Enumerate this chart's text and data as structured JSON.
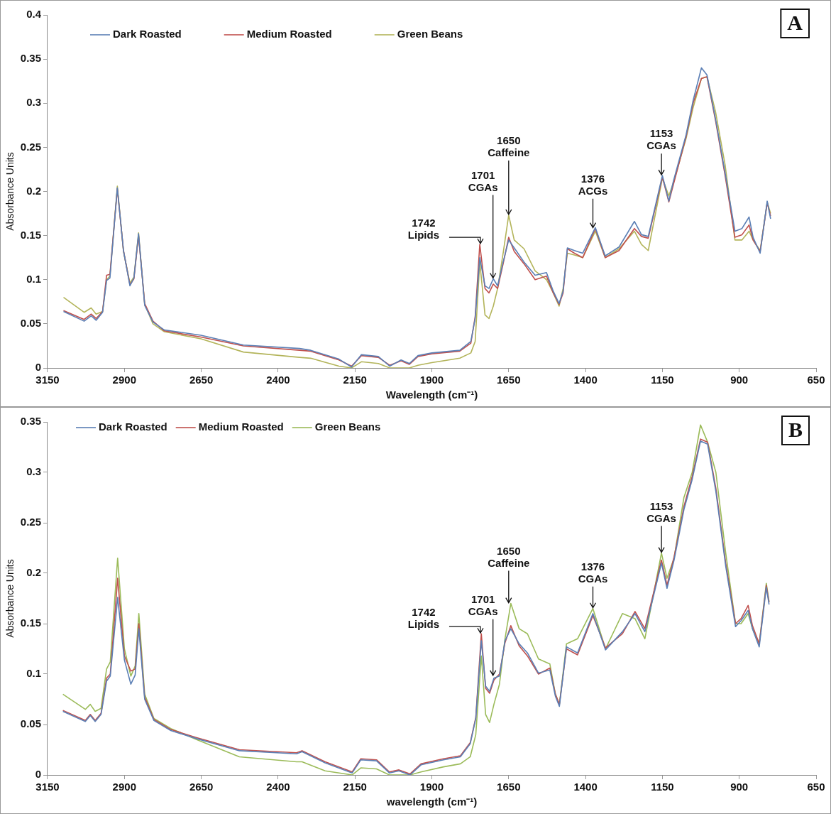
{
  "chart_data": [
    {
      "type": "line",
      "title": "A",
      "xlabel": "Wavelength (cm⁻¹)",
      "ylabel": "Absorbance Units",
      "xlim": [
        3150,
        650
      ],
      "xticks": [
        3150,
        2900,
        2650,
        2400,
        2150,
        1900,
        1650,
        1400,
        1150,
        900,
        650
      ],
      "ylim": [
        0,
        0.4
      ],
      "yticks": [
        0,
        0.05,
        0.1,
        0.15,
        0.2,
        0.25,
        0.3,
        0.35,
        0.4
      ],
      "legend": "top left",
      "grid": false,
      "marker": "none",
      "line_style": "solid",
      "x": [
        3098,
        3031,
        3008,
        2992,
        2971,
        2958,
        2947,
        2923,
        2903,
        2882,
        2869,
        2854,
        2834,
        2807,
        2770,
        2651,
        2513,
        2330,
        2294,
        2202,
        2161,
        2129,
        2074,
        2037,
        2000,
        1973,
        1945,
        1900,
        1809,
        1773,
        1759,
        1744,
        1727,
        1714,
        1700,
        1686,
        1668,
        1650,
        1632,
        1600,
        1564,
        1527,
        1505,
        1486,
        1473,
        1459,
        1436,
        1409,
        1368,
        1336,
        1291,
        1241,
        1218,
        1196,
        1150,
        1129,
        1114,
        1073,
        1050,
        1023,
        1005,
        977,
        946,
        914,
        891,
        868,
        855,
        832,
        809,
        798
      ],
      "series": [
        {
          "name": "Dark Roasted",
          "color": "#5b7fb5",
          "values": [
            0.064,
            0.053,
            0.059,
            0.054,
            0.063,
            0.099,
            0.102,
            0.204,
            0.133,
            0.093,
            0.102,
            0.152,
            0.071,
            0.052,
            0.043,
            0.037,
            0.026,
            0.022,
            0.02,
            0.01,
            0.001,
            0.015,
            0.013,
            0.002,
            0.009,
            0.005,
            0.014,
            0.017,
            0.02,
            0.03,
            0.056,
            0.125,
            0.093,
            0.09,
            0.101,
            0.093,
            0.12,
            0.145,
            0.136,
            0.12,
            0.105,
            0.108,
            0.087,
            0.073,
            0.087,
            0.136,
            0.133,
            0.13,
            0.159,
            0.127,
            0.137,
            0.166,
            0.151,
            0.149,
            0.218,
            0.189,
            0.212,
            0.264,
            0.303,
            0.34,
            0.332,
            0.282,
            0.221,
            0.155,
            0.158,
            0.171,
            0.148,
            0.13,
            0.189,
            0.169
          ]
        },
        {
          "name": "Medium Roasted",
          "color": "#c0504d",
          "values": [
            0.065,
            0.055,
            0.061,
            0.056,
            0.064,
            0.105,
            0.106,
            0.203,
            0.133,
            0.094,
            0.101,
            0.15,
            0.073,
            0.053,
            0.042,
            0.035,
            0.025,
            0.02,
            0.019,
            0.009,
            0.002,
            0.014,
            0.012,
            0.003,
            0.008,
            0.004,
            0.013,
            0.016,
            0.019,
            0.028,
            0.058,
            0.14,
            0.09,
            0.085,
            0.095,
            0.09,
            0.118,
            0.148,
            0.132,
            0.118,
            0.1,
            0.104,
            0.085,
            0.072,
            0.085,
            0.135,
            0.13,
            0.125,
            0.158,
            0.125,
            0.133,
            0.158,
            0.149,
            0.147,
            0.216,
            0.188,
            0.208,
            0.262,
            0.3,
            0.328,
            0.33,
            0.28,
            0.218,
            0.148,
            0.151,
            0.162,
            0.145,
            0.132,
            0.187,
            0.172
          ]
        },
        {
          "name": "Green Beans",
          "color": "#b3b45a",
          "values": [
            0.08,
            0.063,
            0.068,
            0.061,
            0.064,
            0.1,
            0.104,
            0.206,
            0.132,
            0.096,
            0.103,
            0.153,
            0.072,
            0.05,
            0.041,
            0.033,
            0.018,
            0.012,
            0.011,
            0.002,
            0.0,
            0.007,
            0.005,
            0.0,
            0.0,
            0.0,
            0.003,
            0.006,
            0.011,
            0.017,
            0.03,
            0.12,
            0.06,
            0.056,
            0.07,
            0.09,
            0.13,
            0.173,
            0.145,
            0.135,
            0.11,
            0.1,
            0.085,
            0.07,
            0.09,
            0.13,
            0.128,
            0.125,
            0.155,
            0.125,
            0.135,
            0.155,
            0.14,
            0.133,
            0.215,
            0.195,
            0.21,
            0.26,
            0.295,
            0.328,
            0.33,
            0.29,
            0.23,
            0.145,
            0.145,
            0.155,
            0.145,
            0.133,
            0.188,
            0.175
          ]
        }
      ],
      "annotations": [
        {
          "text": "1742\nLipids",
          "x": 1742,
          "y": 0.14
        },
        {
          "text": "1701\nCGAs",
          "x": 1701,
          "y": 0.101
        },
        {
          "text": "1650\nCaffeine",
          "x": 1650,
          "y": 0.173
        },
        {
          "text": "1376\nACGs",
          "x": 1376,
          "y": 0.158
        },
        {
          "text": "1153\nCGAs",
          "x": 1153,
          "y": 0.218
        }
      ]
    },
    {
      "type": "line",
      "title": "B",
      "xlabel": "wavelength (cm⁻¹)",
      "ylabel": "Absorbance Units",
      "xlim": [
        3150,
        650
      ],
      "xticks": [
        3150,
        2900,
        2650,
        2400,
        2150,
        1900,
        1650,
        1400,
        1150,
        900,
        650
      ],
      "ylim": [
        0,
        0.35
      ],
      "yticks": [
        0,
        0.05,
        0.1,
        0.15,
        0.2,
        0.25,
        0.3,
        0.35
      ],
      "legend": "top left",
      "grid": false,
      "marker": "none",
      "line_style": "solid",
      "x": [
        3100,
        3027,
        3011,
        2995,
        2976,
        2958,
        2946,
        2922,
        2900,
        2879,
        2865,
        2853,
        2834,
        2804,
        2749,
        2665,
        2526,
        2340,
        2322,
        2247,
        2159,
        2131,
        2080,
        2038,
        2007,
        1971,
        1935,
        1862,
        1807,
        1775,
        1757,
        1739,
        1725,
        1712,
        1698,
        1680,
        1662,
        1643,
        1616,
        1589,
        1553,
        1516,
        1498,
        1485,
        1462,
        1426,
        1376,
        1335,
        1280,
        1239,
        1207,
        1153,
        1135,
        1112,
        1080,
        1053,
        1026,
        1003,
        976,
        944,
        912,
        894,
        871,
        857,
        835,
        812,
        803
      ],
      "series": [
        {
          "name": "Dark Roasted",
          "color": "#5b7fb5",
          "values": [
            0.063,
            0.053,
            0.059,
            0.053,
            0.06,
            0.093,
            0.098,
            0.176,
            0.114,
            0.09,
            0.099,
            0.145,
            0.075,
            0.054,
            0.044,
            0.036,
            0.024,
            0.021,
            0.023,
            0.012,
            0.002,
            0.015,
            0.014,
            0.002,
            0.004,
            0.0,
            0.01,
            0.015,
            0.018,
            0.031,
            0.056,
            0.133,
            0.088,
            0.083,
            0.096,
            0.098,
            0.133,
            0.145,
            0.13,
            0.121,
            0.101,
            0.104,
            0.078,
            0.068,
            0.127,
            0.121,
            0.16,
            0.124,
            0.142,
            0.16,
            0.142,
            0.21,
            0.185,
            0.213,
            0.263,
            0.293,
            0.331,
            0.328,
            0.281,
            0.207,
            0.147,
            0.153,
            0.163,
            0.145,
            0.127,
            0.186,
            0.169
          ]
        },
        {
          "name": "Medium Roasted",
          "color": "#c0504d",
          "values": [
            0.064,
            0.054,
            0.06,
            0.054,
            0.061,
            0.096,
            0.1,
            0.195,
            0.118,
            0.103,
            0.105,
            0.15,
            0.077,
            0.055,
            0.045,
            0.037,
            0.025,
            0.022,
            0.024,
            0.013,
            0.003,
            0.016,
            0.015,
            0.003,
            0.005,
            0.001,
            0.011,
            0.016,
            0.019,
            0.032,
            0.057,
            0.14,
            0.086,
            0.081,
            0.094,
            0.1,
            0.131,
            0.148,
            0.128,
            0.118,
            0.1,
            0.106,
            0.08,
            0.07,
            0.125,
            0.119,
            0.158,
            0.126,
            0.14,
            0.162,
            0.145,
            0.213,
            0.188,
            0.216,
            0.266,
            0.296,
            0.333,
            0.33,
            0.284,
            0.21,
            0.15,
            0.155,
            0.168,
            0.148,
            0.13,
            0.188,
            0.171
          ]
        },
        {
          "name": "Green Beans",
          "color": "#9bbb59",
          "values": [
            0.08,
            0.065,
            0.07,
            0.063,
            0.066,
            0.105,
            0.112,
            0.215,
            0.125,
            0.098,
            0.108,
            0.16,
            0.08,
            0.056,
            0.046,
            0.035,
            0.018,
            0.013,
            0.013,
            0.004,
            0.0,
            0.007,
            0.006,
            0.0,
            0.0,
            0.0,
            0.003,
            0.008,
            0.011,
            0.018,
            0.04,
            0.118,
            0.06,
            0.052,
            0.07,
            0.09,
            0.135,
            0.17,
            0.145,
            0.14,
            0.115,
            0.11,
            0.08,
            0.07,
            0.13,
            0.135,
            0.165,
            0.125,
            0.16,
            0.155,
            0.135,
            0.22,
            0.195,
            0.215,
            0.275,
            0.3,
            0.347,
            0.33,
            0.3,
            0.22,
            0.15,
            0.15,
            0.16,
            0.145,
            0.13,
            0.19,
            0.172
          ]
        }
      ],
      "annotations": [
        {
          "text": "1742\nLipids",
          "x": 1742,
          "y": 0.14
        },
        {
          "text": "1701\nCGAs",
          "x": 1701,
          "y": 0.098
        },
        {
          "text": "1650\nCaffeine",
          "x": 1650,
          "y": 0.17
        },
        {
          "text": "1376\nCGAs",
          "x": 1376,
          "y": 0.165
        },
        {
          "text": "1153\nCGAs",
          "x": 1153,
          "y": 0.22
        }
      ]
    }
  ]
}
